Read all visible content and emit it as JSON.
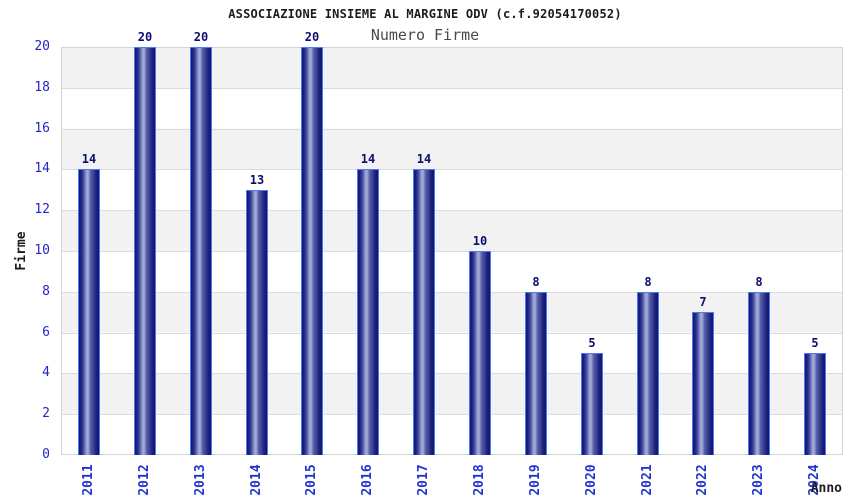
{
  "chart_data": {
    "type": "bar",
    "title": "ASSOCIAZIONE INSIEME AL MARGINE ODV (c.f.92054170052)",
    "subtitle": "Numero Firme",
    "xlabel": "Anno",
    "ylabel": "Firme",
    "categories": [
      "2011",
      "2012",
      "2013",
      "2014",
      "2015",
      "2016",
      "2017",
      "2018",
      "2019",
      "2020",
      "2021",
      "2022",
      "2023",
      "2024"
    ],
    "values": [
      14,
      20,
      20,
      13,
      20,
      14,
      14,
      10,
      8,
      5,
      8,
      7,
      8,
      5
    ],
    "ylim": [
      0,
      20
    ],
    "ytick_step": 2,
    "yticks": [
      0,
      2,
      4,
      6,
      8,
      10,
      12,
      14,
      16,
      18,
      20
    ],
    "grid": "alternating-horizontal-bands",
    "legend": "none",
    "colors": {
      "bar_gradient_dark": "#17177a",
      "bar_gradient_mid": "#565ea8",
      "bar_gradient_light": "#a6aedd",
      "bar_border": "#4c7df0",
      "axis_tick_label": "#2424cf",
      "value_label": "#0d0d70",
      "band_fill": "#f2f2f2",
      "plot_border": "#d6d6d6",
      "gridline": "#dcdcdc",
      "title": "#1c1c1c",
      "subtitle": "#4a4a4a",
      "axis_title": "#1c1c1c"
    }
  }
}
